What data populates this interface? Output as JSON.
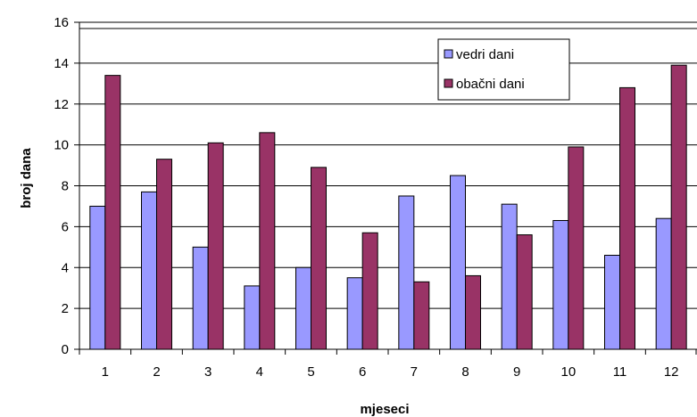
{
  "chart_data": {
    "type": "bar",
    "title": "",
    "xlabel": "mjeseci",
    "ylabel": "broj dana",
    "categories": [
      "1",
      "2",
      "3",
      "4",
      "5",
      "6",
      "7",
      "8",
      "9",
      "10",
      "11",
      "12"
    ],
    "ylim": [
      0,
      16
    ],
    "yticks": [
      "0",
      "2",
      "4",
      "6",
      "8",
      "10",
      "12",
      "14",
      "16"
    ],
    "grid": true,
    "legend_position": "top-right",
    "series": [
      {
        "name": "vedri dani",
        "color": "#9999ff",
        "values": [
          7.0,
          7.7,
          5.0,
          3.1,
          4.0,
          3.5,
          7.5,
          8.5,
          7.1,
          6.3,
          4.6,
          6.4
        ]
      },
      {
        "name": "obačni dani",
        "color": "#993366",
        "values": [
          13.4,
          9.3,
          10.1,
          10.6,
          8.9,
          5.7,
          3.3,
          3.6,
          5.6,
          9.9,
          12.8,
          13.9
        ]
      }
    ]
  }
}
